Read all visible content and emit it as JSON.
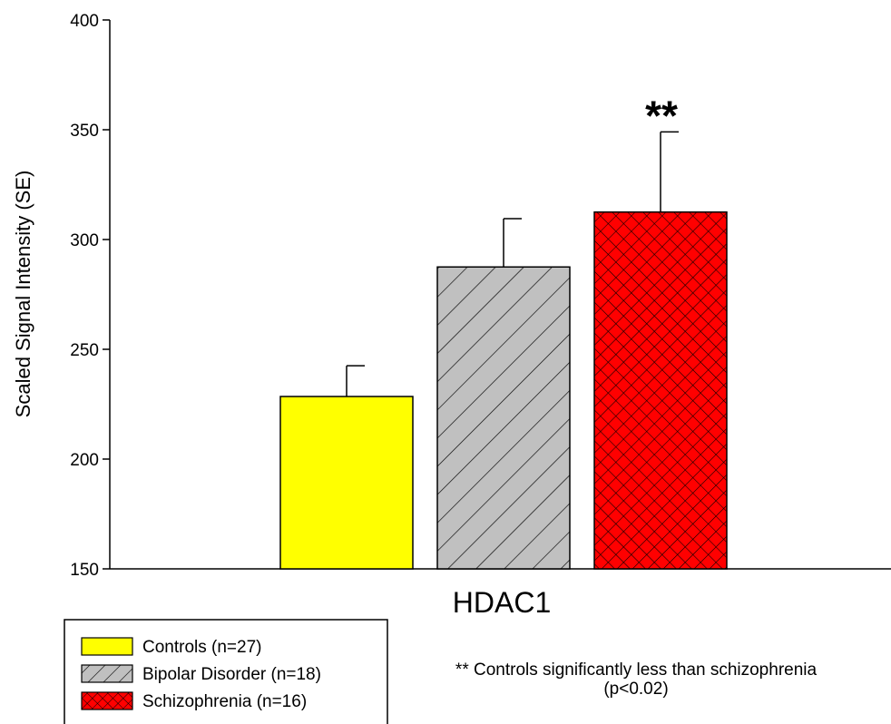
{
  "chart_data": {
    "type": "bar",
    "categories": [
      "HDAC1"
    ],
    "series": [
      {
        "name": "Controls (n=27)",
        "values": [
          228.5
        ],
        "error": [
          14
        ],
        "color": "#ffff00",
        "pattern": "solid"
      },
      {
        "name": "Bipolar Disorder (n=18)",
        "values": [
          287.5
        ],
        "error": [
          22
        ],
        "color": "#c0c0c0",
        "pattern": "diagonal-hatch"
      },
      {
        "name": "Schizophrenia (n=16)",
        "values": [
          312.5
        ],
        "error": [
          36.5
        ],
        "color": "#ff0000",
        "pattern": "crosshatch"
      }
    ],
    "ylabel": "Scaled Signal Intensity (SE)",
    "xlabel": "",
    "ylim": [
      150,
      400
    ],
    "yticks": [
      "150",
      "200",
      "250",
      "300",
      "350",
      "400"
    ],
    "significance_marker": "**",
    "significance_note_line1": "** Controls significantly less than schizophrenia",
    "significance_note_line2": "(p<0.02)",
    "legend_position": "bottom-left",
    "grid": false
  }
}
